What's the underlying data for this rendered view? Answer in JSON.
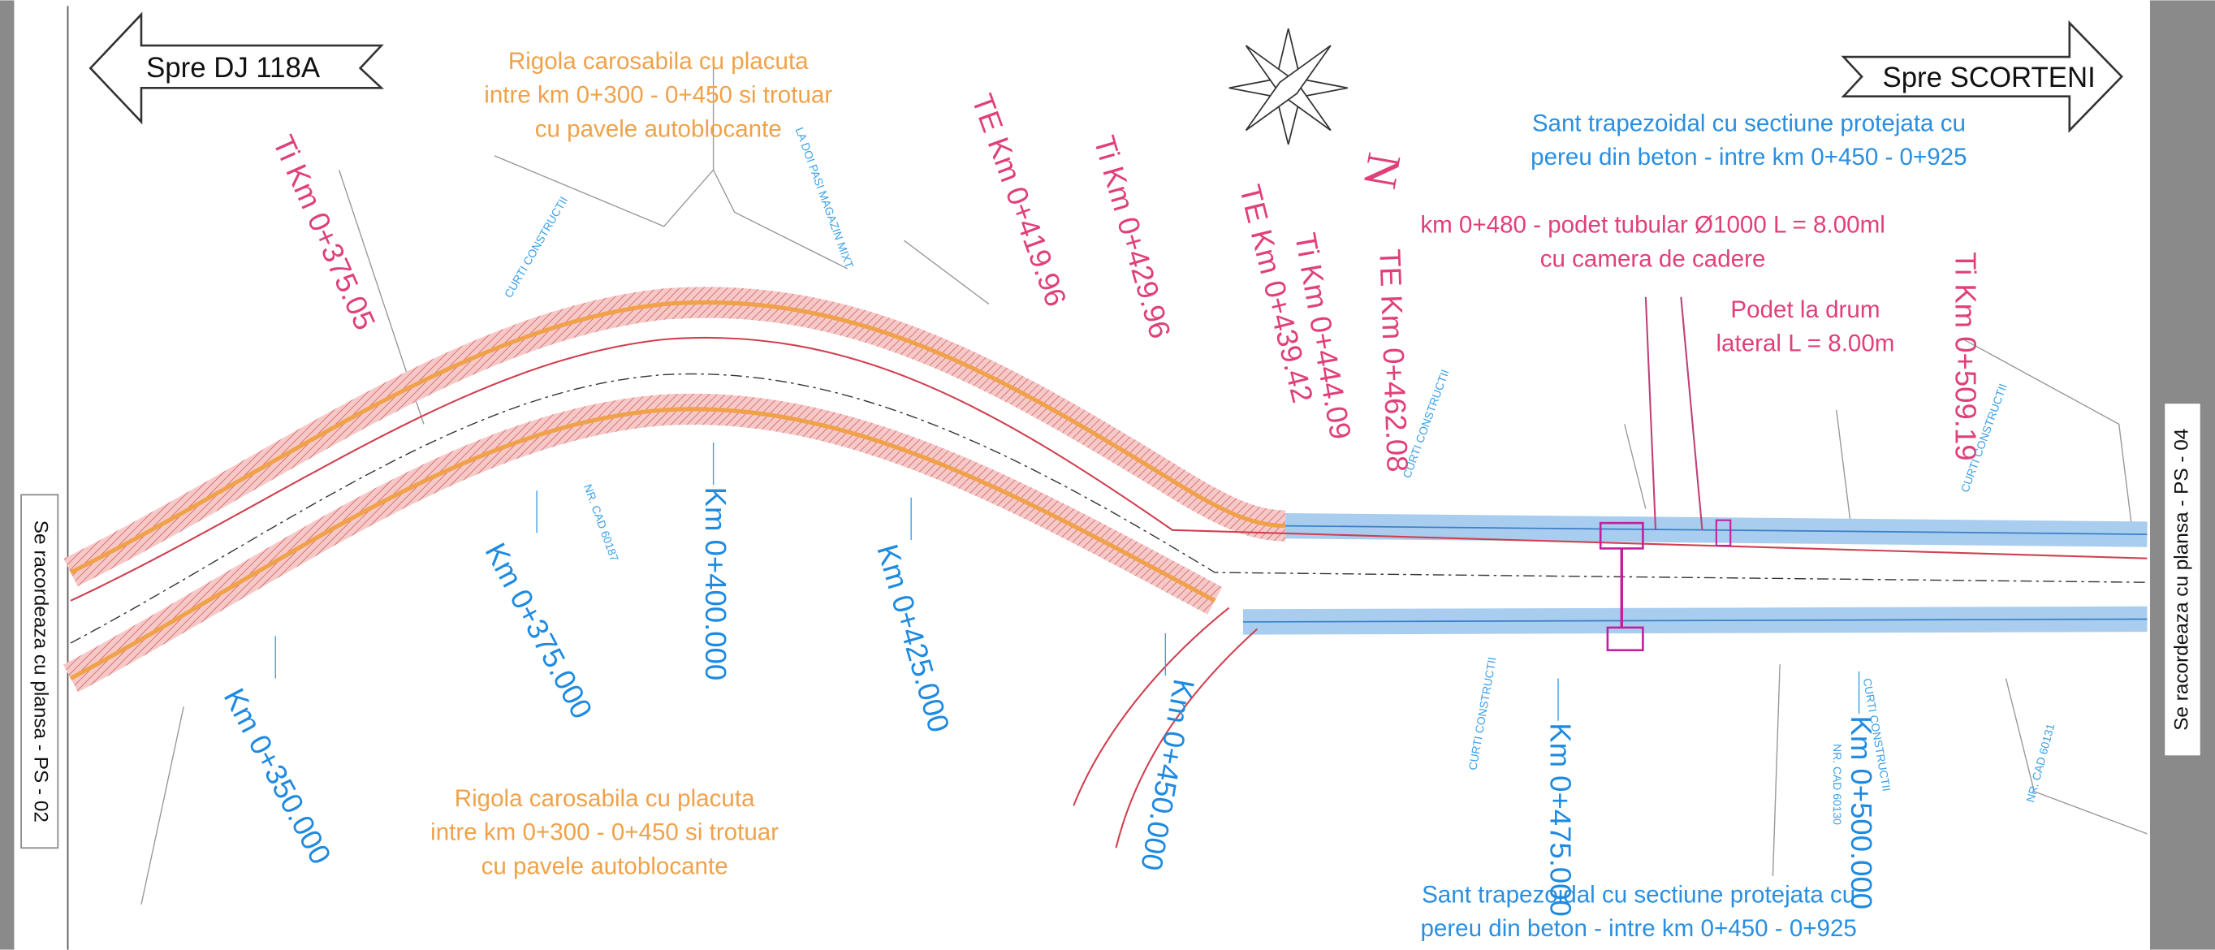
{
  "directions": {
    "left": "Spre DJ 118A",
    "right": "Spre SCORTENI"
  },
  "side_labels": {
    "left": "Se racordeaza cu plansa - PS - 02",
    "right": "Se racordeaza cu plansa - PS - 04"
  },
  "north": "N",
  "notes": [
    {
      "lines": [
        "Rigola carosabila cu placuta",
        "intre km 0+300 - 0+450 si trotuar",
        "cu pavele autoblocante"
      ]
    },
    {
      "lines": [
        "Rigola carosabila cu placuta",
        "intre km 0+300 - 0+450 si trotuar",
        "cu pavele autoblocante"
      ]
    },
    {
      "lines": [
        "Sant trapezoidal cu sectiune protejata cu",
        "pereu din beton - intre km 0+450 - 0+925"
      ]
    },
    {
      "lines": [
        "Sant trapezoidal cu sectiune protejata cu",
        "pereu din beton - intre km 0+450 - 0+925"
      ]
    },
    {
      "lines": [
        "km 0+480 - podet tubular Ø1000 L = 8.00ml",
        "cu camera de cadere"
      ]
    },
    {
      "lines": [
        "Podet la drum",
        "lateral L = 8.00m"
      ]
    }
  ],
  "chainages": [
    "Km 0+350.000",
    "Km 0+375.000",
    "Km 0+400.000",
    "Km 0+425.000",
    "Km 0+450.000",
    "Km 0+475.000",
    "Km 0+500.000"
  ],
  "curve_points": [
    "Ti Km 0+375.05",
    "TE Km 0+419.96",
    "Ti Km 0+429.96",
    "TE Km 0+439.42",
    "Ti Km 0+444.09",
    "TE Km 0+462.08",
    "Ti Km 0+509.19"
  ],
  "small_labels": [
    "CURTI CONSTRUCTII",
    "CURTI CONSTRUCTII",
    "CURTI CONSTRUCTII",
    "CURTI CONSTRUCTII",
    "CURTI CONSTRUCTII",
    "NR. CAD 60187",
    "NR. CAD 60131",
    "NR. CAD 60130",
    "LA DOI PASI MAGAZIN MIXT"
  ]
}
